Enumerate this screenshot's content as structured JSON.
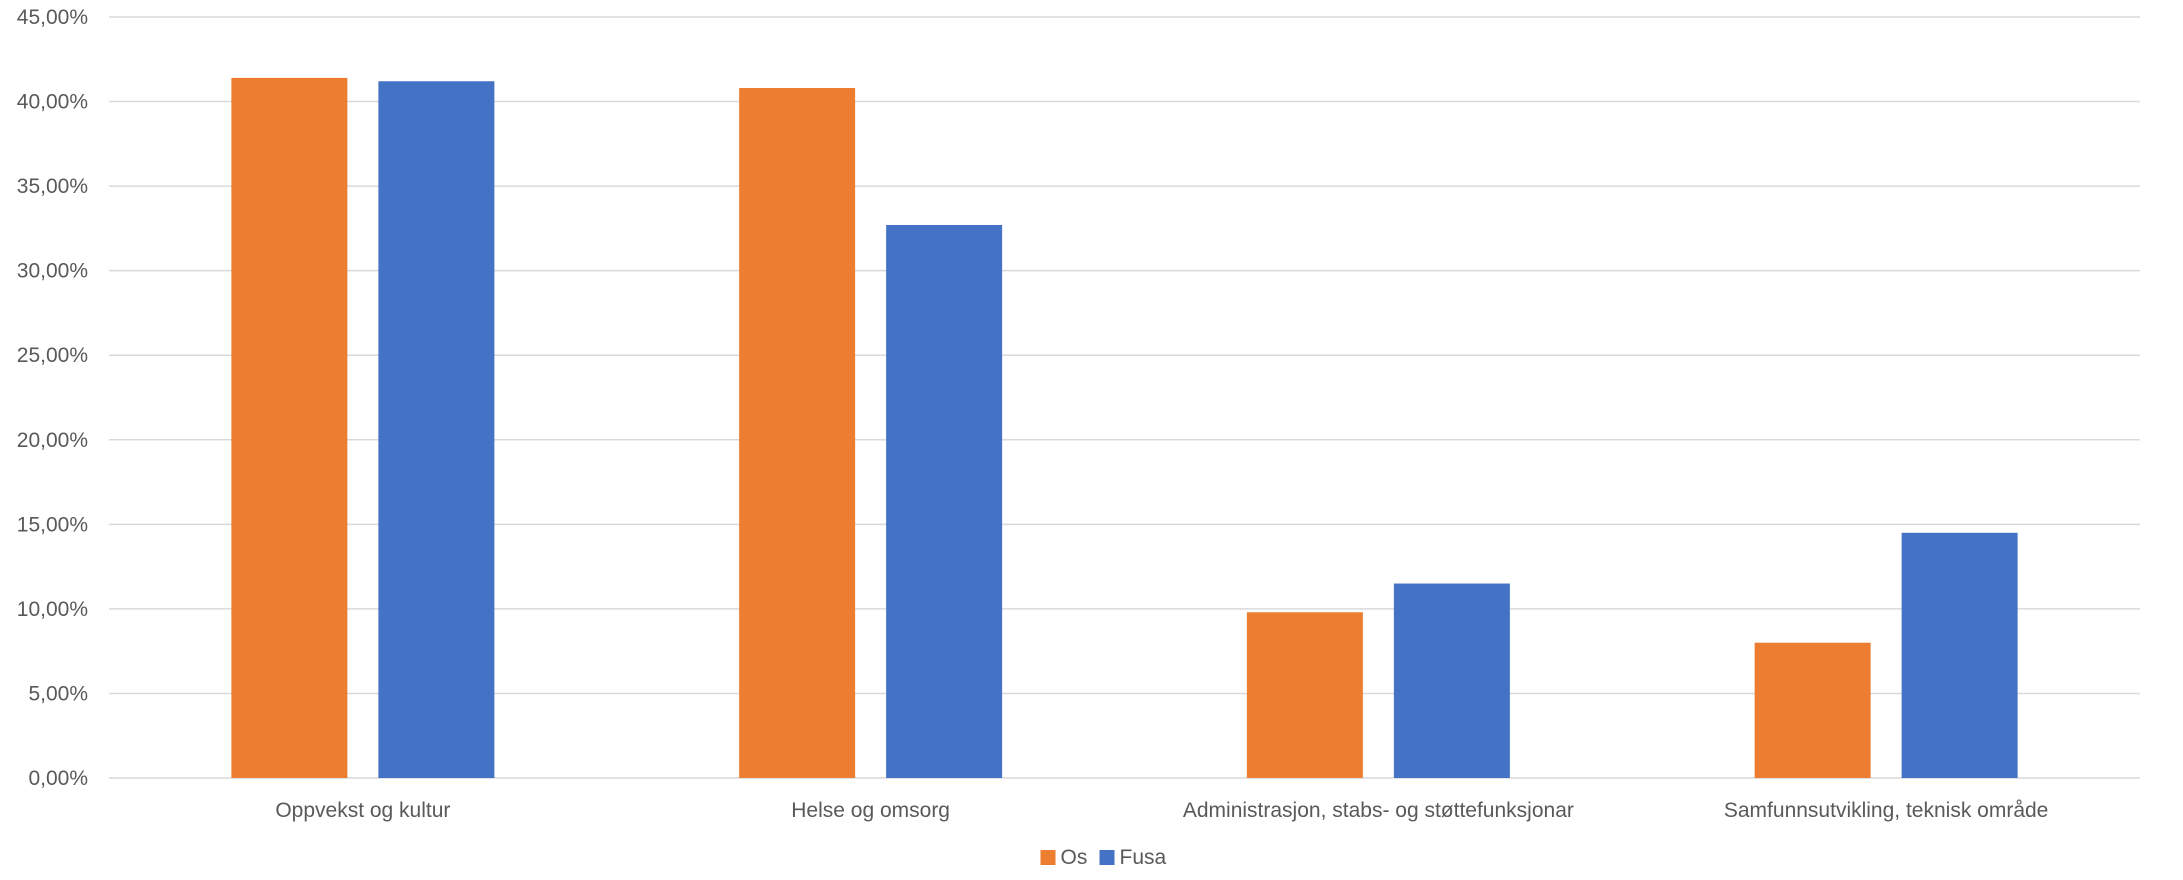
{
  "chart_data": {
    "type": "bar",
    "categories": [
      "Oppvekst og kultur",
      "Helse og omsorg",
      "Administrasjon, stabs- og støttefunksjonar",
      "Samfunnsutvikling, teknisk område"
    ],
    "series": [
      {
        "name": "Os",
        "color": "#ED7D31",
        "values": [
          41.4,
          40.8,
          9.8,
          8.0
        ]
      },
      {
        "name": "Fusa",
        "color": "#4472C4",
        "values": [
          41.2,
          32.7,
          11.5,
          14.5
        ]
      }
    ],
    "y_ticks": [
      "0,00%",
      "5,00%",
      "10,00%",
      "15,00%",
      "20,00%",
      "25,00%",
      "30,00%",
      "35,00%",
      "40,00%",
      "45,00%"
    ],
    "ylim": [
      0,
      45
    ],
    "grid": true,
    "gridline_color": "#D9D9D9",
    "legend_position": "bottom"
  }
}
